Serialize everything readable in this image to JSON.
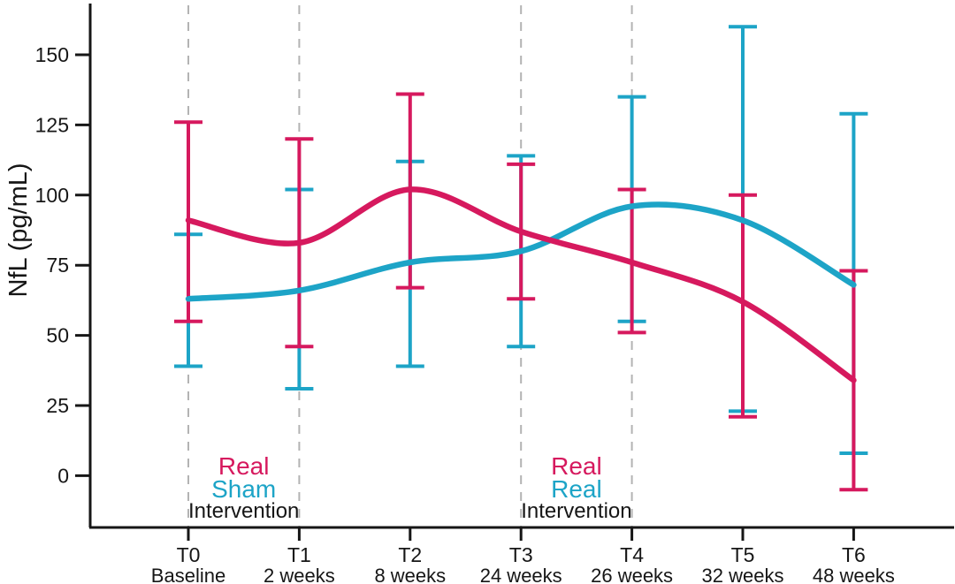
{
  "figure": {
    "background": "#ffffff",
    "axis_color": "#161616",
    "guide_color": "#b3b3b3"
  },
  "chart_data": {
    "type": "line",
    "title": "",
    "xlabel": "",
    "ylabel": "NfL (pg/mL)",
    "yticks": [
      0,
      25,
      50,
      75,
      100,
      125,
      150
    ],
    "ylim": [
      -20,
      168
    ],
    "grid": "off",
    "legend_position": "inline-annotations",
    "categories": [
      "T0",
      "T1",
      "T2",
      "T3",
      "T4",
      "T5",
      "T6"
    ],
    "category_sublabels": [
      "Baseline",
      "2 weeks",
      "8 weeks",
      "24 weeks",
      "26 weeks",
      "32 weeks",
      "48 weeks"
    ],
    "dashed_guides_at": [
      "T0",
      "T1",
      "T3",
      "T4"
    ],
    "series": [
      {
        "name": "Real",
        "color": "#d6195e",
        "values": [
          91,
          83,
          102,
          87,
          76,
          62,
          34
        ],
        "ci_low": [
          55,
          46,
          67,
          63,
          51,
          21,
          -5
        ],
        "ci_high": [
          126,
          120,
          136,
          111,
          102,
          100,
          73
        ]
      },
      {
        "name": "Sham",
        "color": "#1da4c7",
        "values": [
          63,
          66,
          76,
          80,
          96,
          91,
          68
        ],
        "ci_low": [
          39,
          31,
          39,
          46,
          55,
          23,
          8
        ],
        "ci_high": [
          86,
          102,
          112,
          114,
          135,
          160,
          129
        ]
      }
    ],
    "annotations": [
      {
        "between": [
          "T0",
          "T1"
        ],
        "lines": [
          {
            "text": "Real",
            "color": "#d6195e"
          },
          {
            "text": "Sham",
            "color": "#1da4c7"
          },
          {
            "text": "Intervention",
            "color": "#161616"
          }
        ]
      },
      {
        "between": [
          "T3",
          "T4"
        ],
        "lines": [
          {
            "text": "Real",
            "color": "#d6195e"
          },
          {
            "text": "Real",
            "color": "#1da4c7"
          },
          {
            "text": "Intervention",
            "color": "#161616"
          }
        ]
      }
    ]
  }
}
